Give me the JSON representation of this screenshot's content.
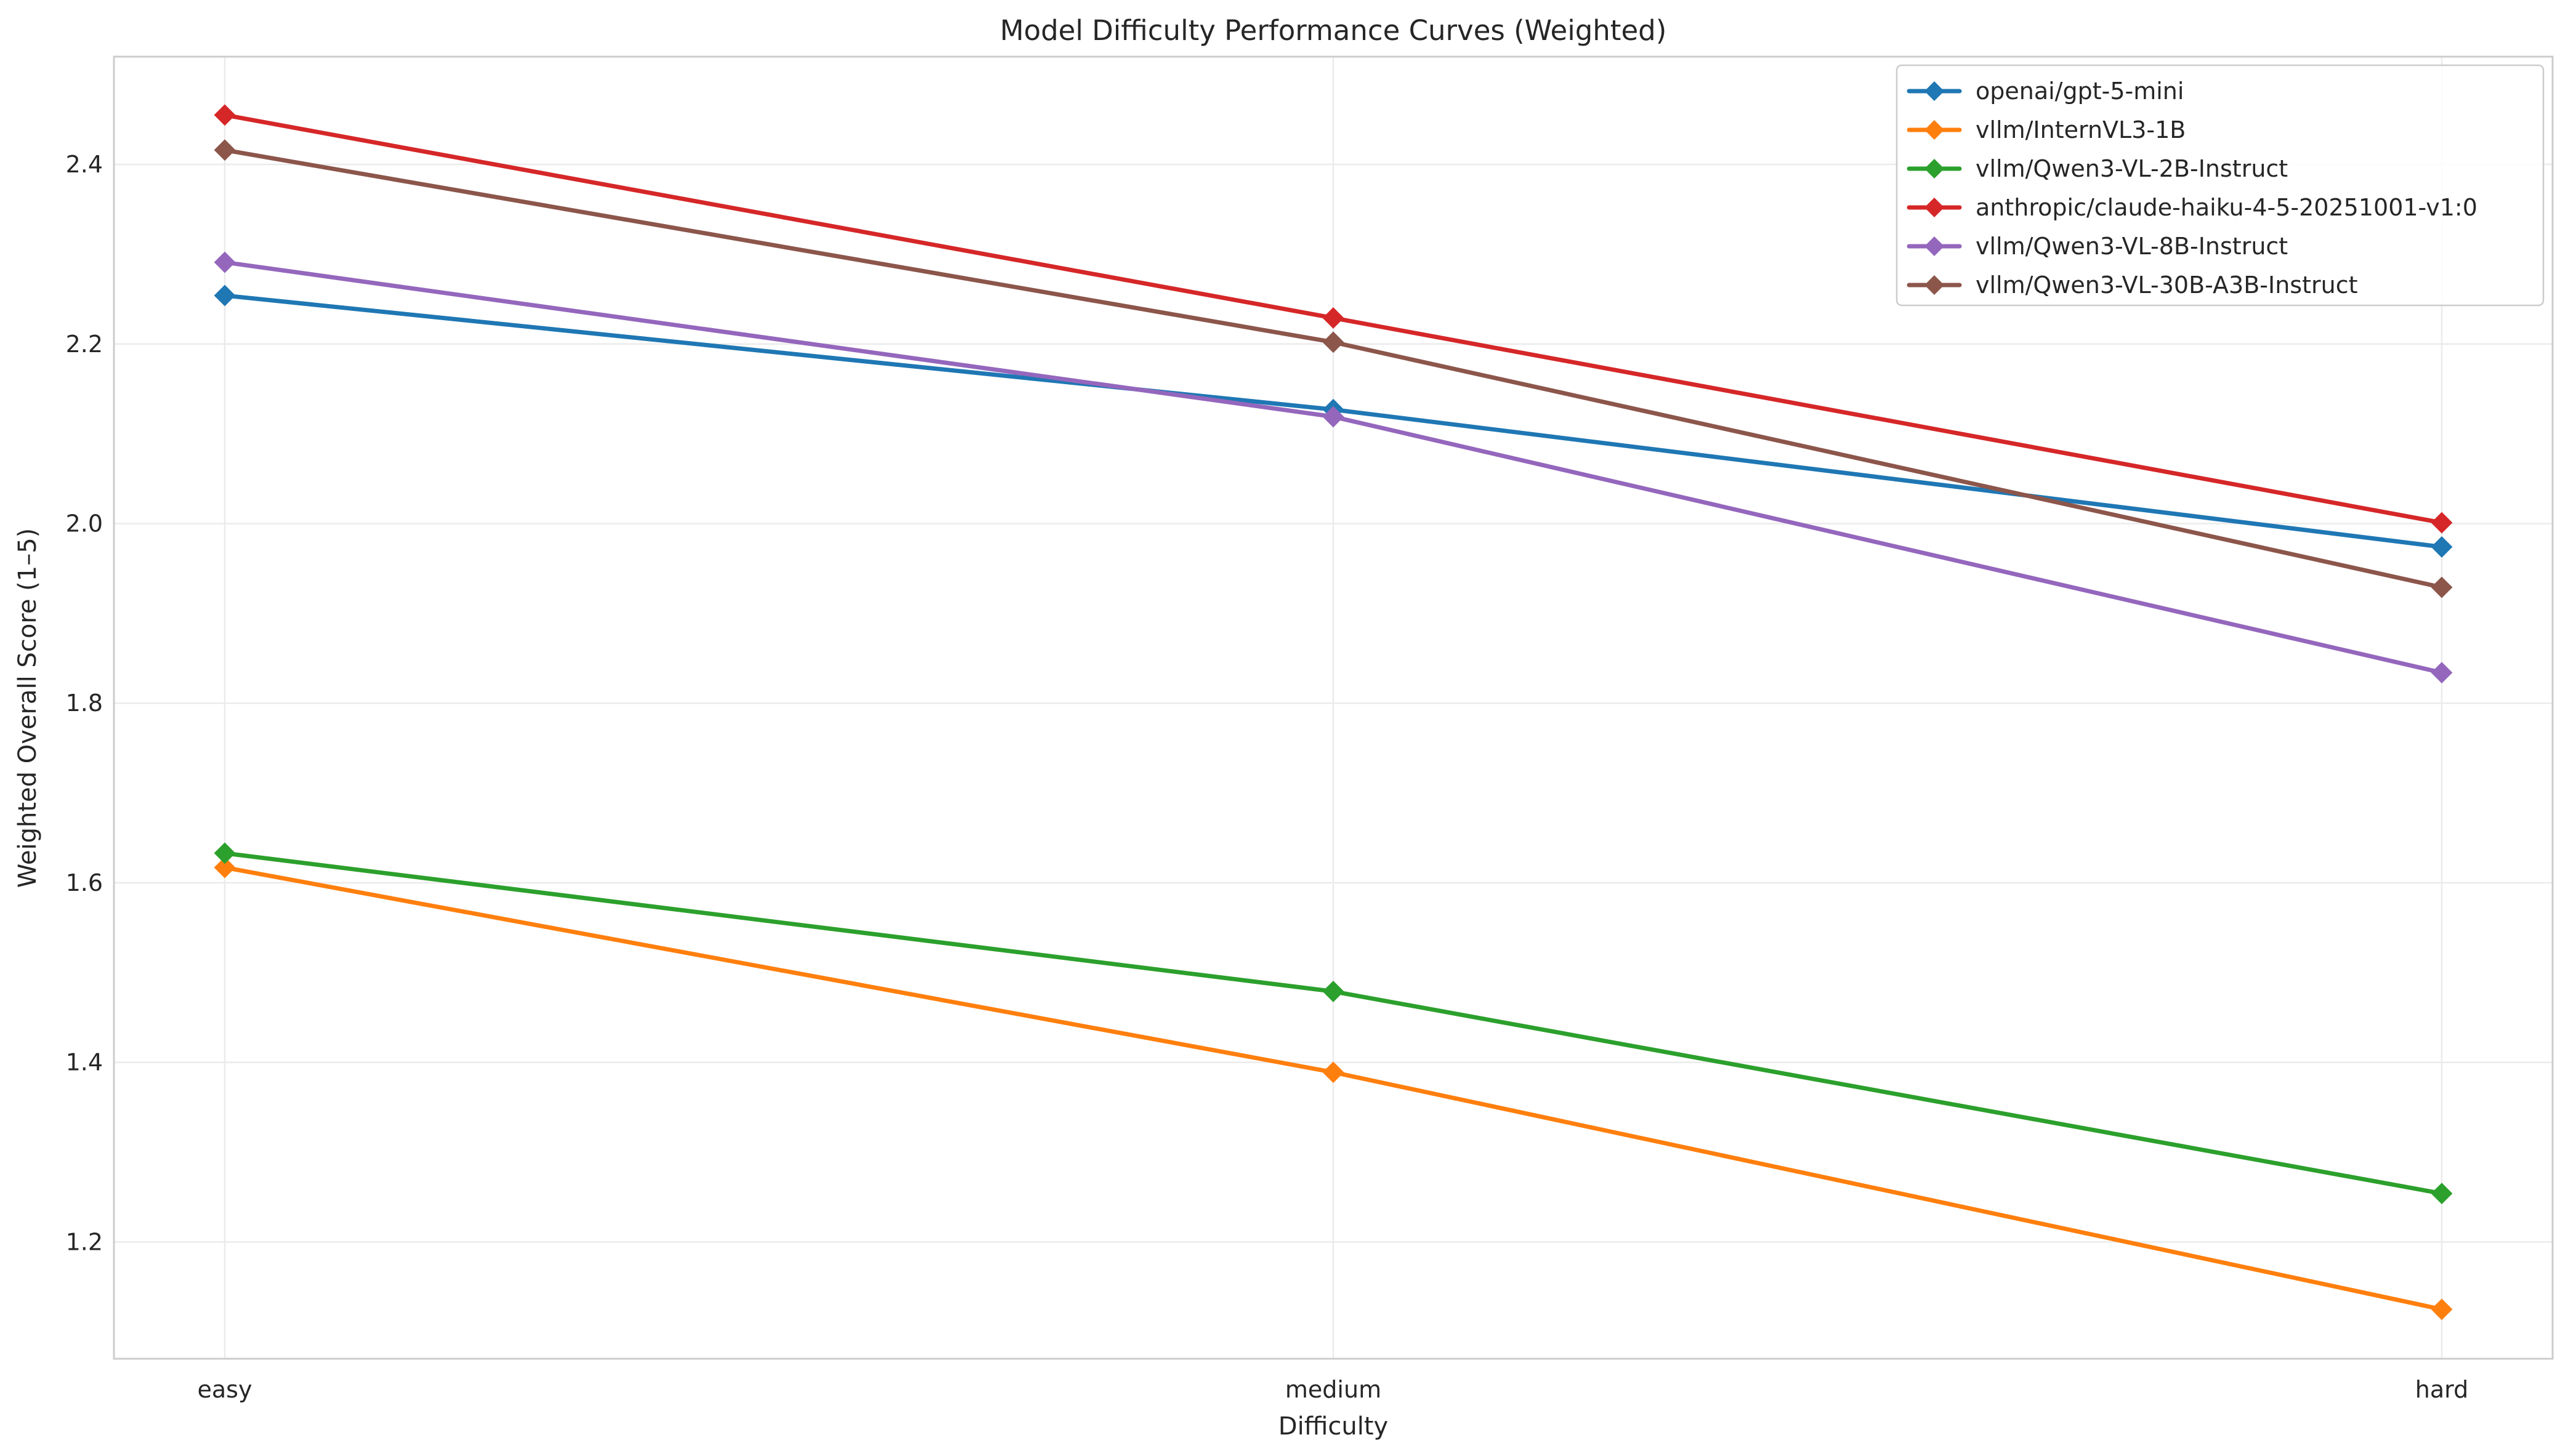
{
  "chart_data": {
    "type": "line",
    "title": "Model Difficulty Performance Curves (Weighted)",
    "xlabel": "Difficulty",
    "ylabel": "Weighted Overall Score (1–5)",
    "categories": [
      "easy",
      "medium",
      "hard"
    ],
    "ylim": [
      1.07,
      2.52
    ],
    "yticks": [
      1.2,
      1.4,
      1.6,
      1.8,
      2.0,
      2.2,
      2.4
    ],
    "ytick_labels": [
      "1.2",
      "1.4",
      "1.6",
      "1.8",
      "2.0",
      "2.2",
      "2.4"
    ],
    "grid": true,
    "legend_position": "top-right",
    "marker": "diamond",
    "series": [
      {
        "name": "openai/gpt-5-mini",
        "color": "#1f77b4",
        "values": [
          2.254,
          2.127,
          1.974
        ]
      },
      {
        "name": "vllm/InternVL3-1B",
        "color": "#ff7f0e",
        "values": [
          1.617,
          1.389,
          1.125
        ]
      },
      {
        "name": "vllm/Qwen3-VL-2B-Instruct",
        "color": "#2ca02c",
        "values": [
          1.633,
          1.479,
          1.254
        ]
      },
      {
        "name": "anthropic/claude-haiku-4-5-20251001-v1:0",
        "color": "#d62728",
        "values": [
          2.455,
          2.229,
          2.001
        ]
      },
      {
        "name": "vllm/Qwen3-VL-8B-Instruct",
        "color": "#9467bd",
        "values": [
          2.291,
          2.119,
          1.834
        ]
      },
      {
        "name": "vllm/Qwen3-VL-30B-A3B-Instruct",
        "color": "#8c564b",
        "values": [
          2.416,
          2.202,
          1.929
        ]
      }
    ]
  }
}
